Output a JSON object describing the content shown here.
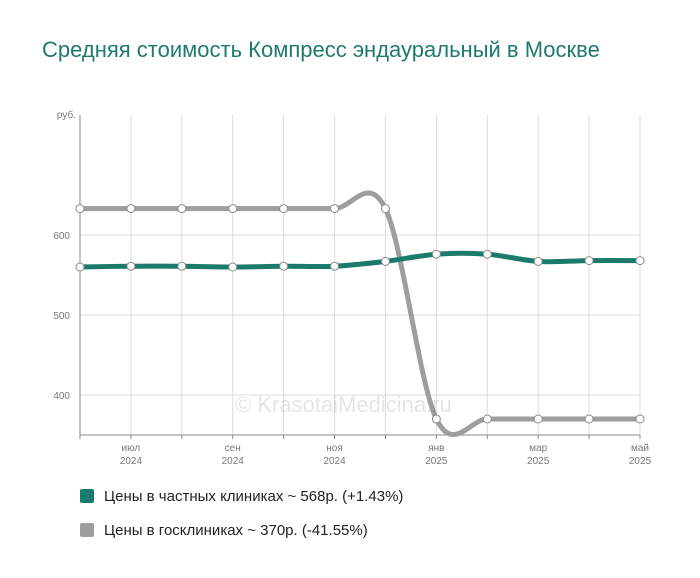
{
  "chart_data": {
    "type": "line",
    "title": "Средняя стоимость Компресс эндауральный в Москве",
    "ylabel": "руб.",
    "yticks": [
      400,
      500,
      600
    ],
    "ylim": [
      350,
      750
    ],
    "xlim": [
      0,
      11
    ],
    "xticks": [
      {
        "month": "июл",
        "year": "2024",
        "x": 1
      },
      {
        "month": "сен",
        "year": "2024",
        "x": 3
      },
      {
        "month": "ноя",
        "year": "2024",
        "x": 5
      },
      {
        "month": "янв",
        "year": "2025",
        "x": 7
      },
      {
        "month": "мар",
        "year": "2025",
        "x": 9
      },
      {
        "month": "май",
        "year": "2025",
        "x": 11
      }
    ],
    "x": [
      0,
      1,
      2,
      3,
      4,
      5,
      6,
      7,
      8,
      9,
      10,
      11
    ],
    "series": [
      {
        "name": "Цены в частных клиниках",
        "legend_label": "Цены в частных клиниках ~ 568р. (+1.43%)",
        "color": "#1a7a6c",
        "values": [
          560,
          561,
          561,
          560,
          561,
          561,
          567,
          576,
          576,
          567,
          568,
          568
        ]
      },
      {
        "name": "Цены в госклиниках",
        "legend_label": "Цены в госклиниках ~ 370р. (-41.55%)",
        "color": "#9e9e9e",
        "values": [
          633,
          633,
          633,
          633,
          633,
          633,
          633,
          370,
          370,
          370,
          370,
          370
        ]
      }
    ],
    "grid": true,
    "legend_position": "bottom",
    "watermark": "© KrasotaiMedicina.ru"
  }
}
